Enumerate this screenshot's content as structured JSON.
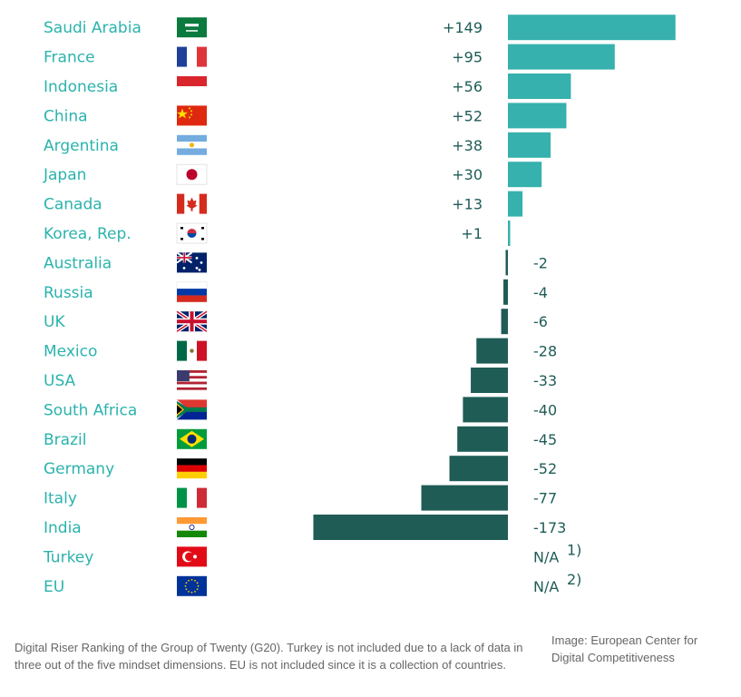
{
  "chart_data": {
    "type": "bar",
    "orientation": "horizontal",
    "title": "",
    "xlabel": "",
    "ylabel": "",
    "categories": [
      "Saudi Arabia",
      "France",
      "Indonesia",
      "China",
      "Argentina",
      "Japan",
      "Canada",
      "Korea, Rep.",
      "Australia",
      "Russia",
      "UK",
      "Mexico",
      "USA",
      "South Africa",
      "Brazil",
      "Germany",
      "Italy",
      "India",
      "Turkey",
      "EU"
    ],
    "values": [
      149,
      95,
      56,
      52,
      38,
      30,
      13,
      1,
      -2,
      -4,
      -6,
      -28,
      -33,
      -40,
      -45,
      -52,
      -77,
      -173,
      null,
      null
    ],
    "value_labels": [
      "+149",
      "+95",
      "+56",
      "+52",
      "+38",
      "+30",
      "+13",
      "+1",
      "-2",
      "-4",
      "-6",
      "-28",
      "-33",
      "-40",
      "-45",
      "-52",
      "-77",
      "-173",
      "N/A",
      "N/A"
    ],
    "footnote_marks": [
      "",
      "",
      "",
      "",
      "",
      "",
      "",
      "",
      "",
      "",
      "",
      "",
      "",
      "",
      "",
      "",
      "",
      "",
      "1)",
      "2)"
    ],
    "flags": [
      "saudi-arabia-flag-icon",
      "france-flag-icon",
      "indonesia-flag-icon",
      "china-flag-icon",
      "argentina-flag-icon",
      "japan-flag-icon",
      "canada-flag-icon",
      "korea-flag-icon",
      "australia-flag-icon",
      "russia-flag-icon",
      "uk-flag-icon",
      "mexico-flag-icon",
      "usa-flag-icon",
      "south-africa-flag-icon",
      "brazil-flag-icon",
      "germany-flag-icon",
      "italy-flag-icon",
      "india-flag-icon",
      "turkey-flag-icon",
      "eu-flag-icon"
    ],
    "colors": {
      "positive": "#36b1ad",
      "negative": "#1f5c56",
      "label": "#2bb3ad"
    },
    "xlim": [
      -173,
      149
    ],
    "grid": false,
    "legend": "none"
  },
  "caption": "Digital Riser Ranking of the Group of Twenty (G20). Turkey is not included due to a lack of data in three out of the five mindset dimensions. EU is not included since it is a collection of countries.",
  "credit": "Image: European Center for Digital Competitiveness"
}
